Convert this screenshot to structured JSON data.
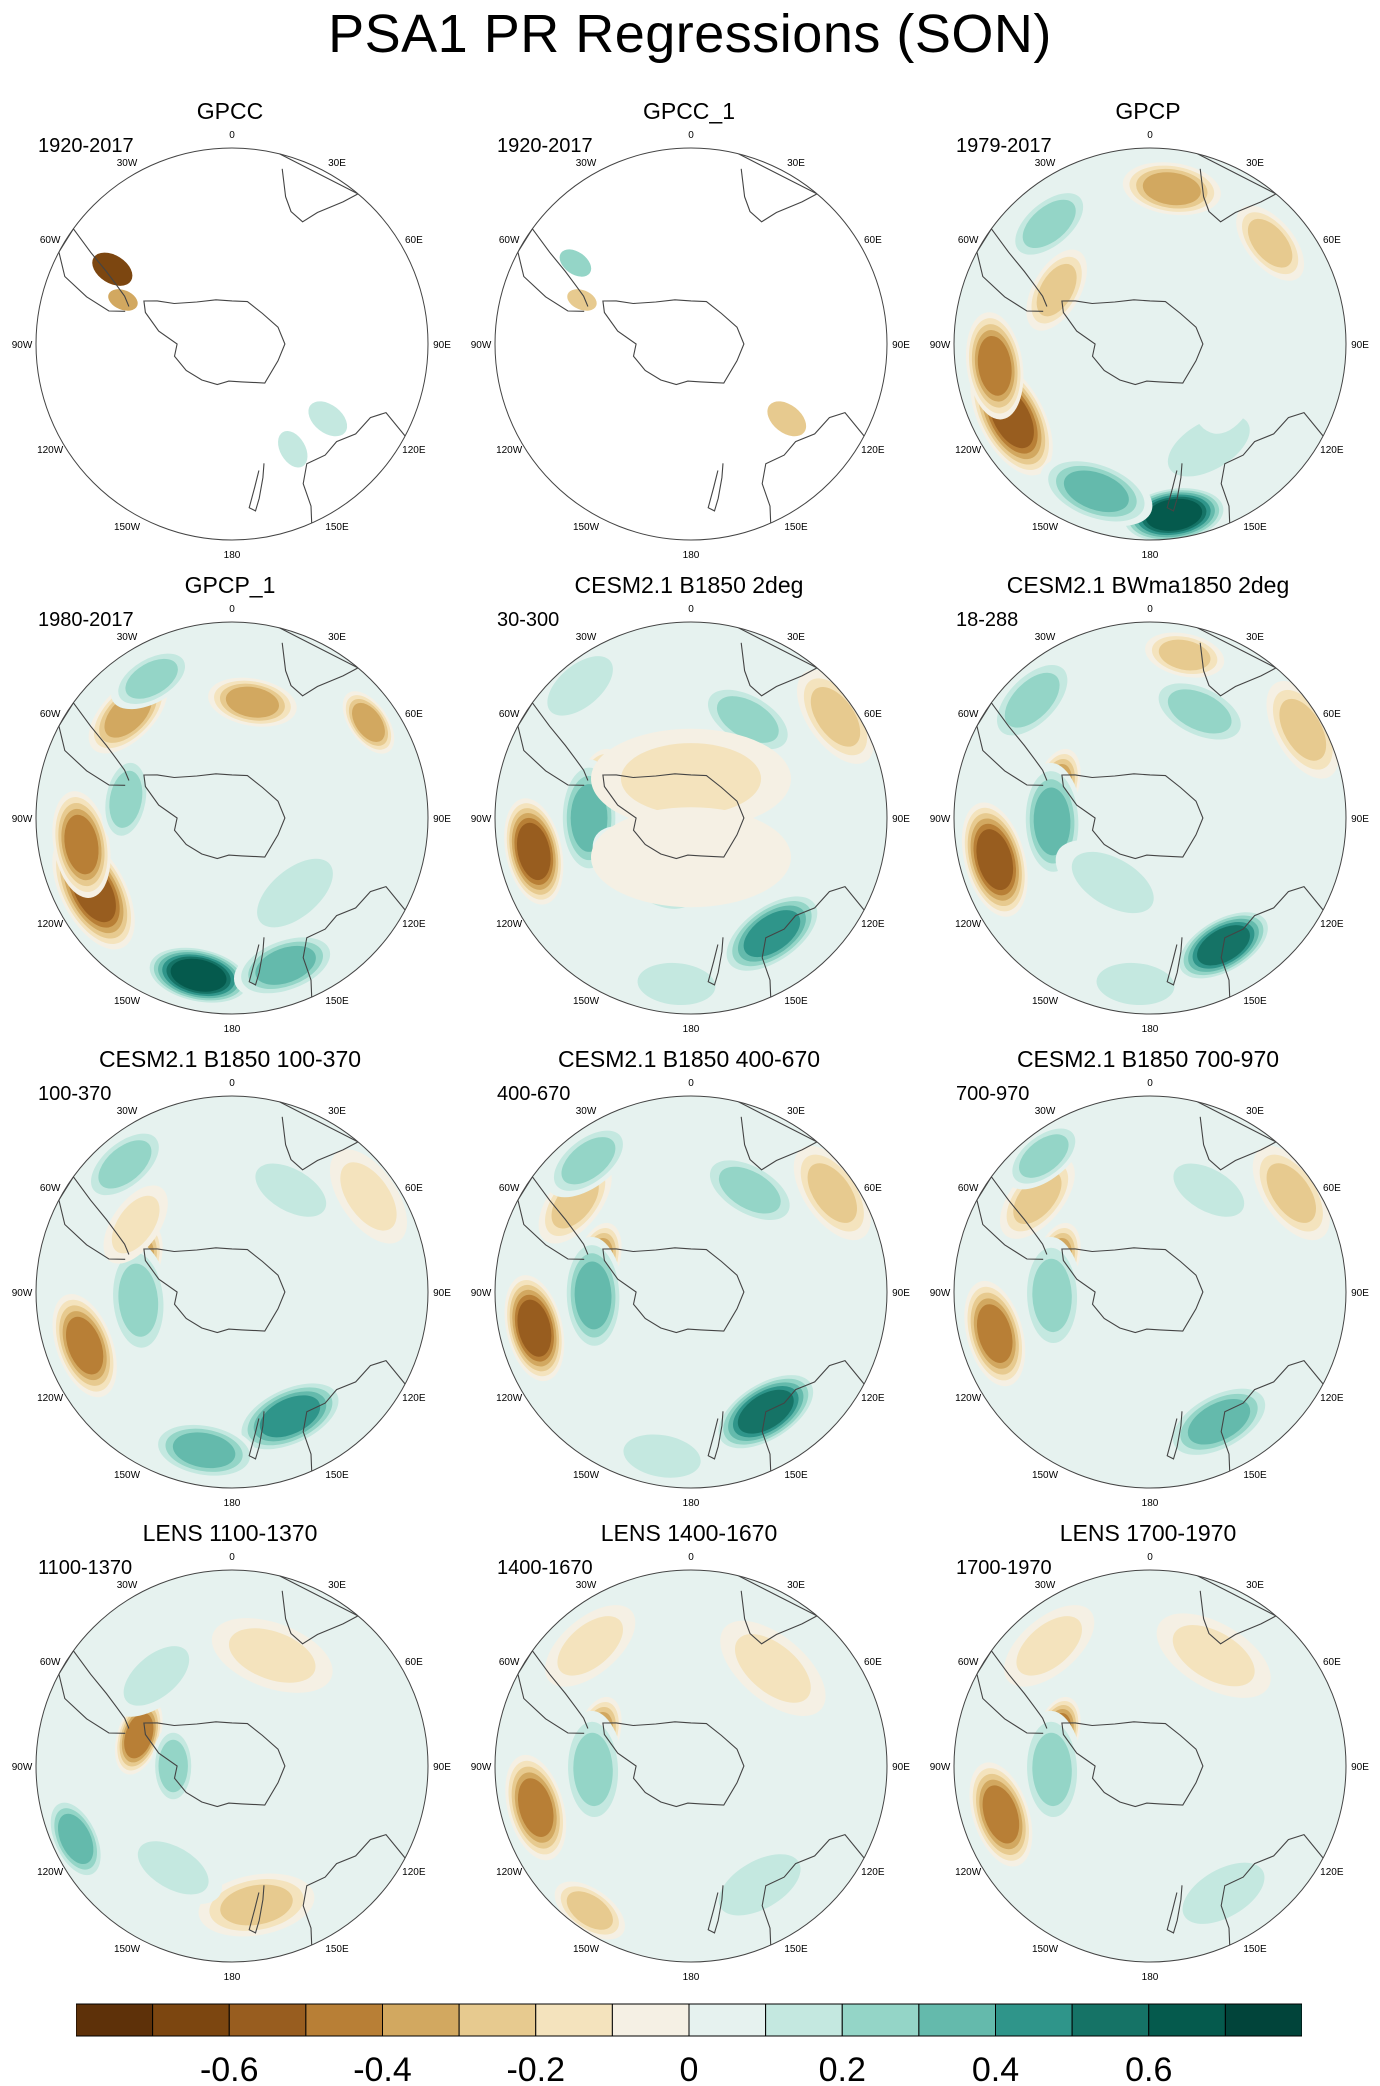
{
  "title": "PSA1 PR Regressions (SON)",
  "lon_labels": [
    "0",
    "30E",
    "60E",
    "90E",
    "120E",
    "150E",
    "180",
    "150W",
    "120W",
    "90W",
    "60W",
    "30W"
  ],
  "panels": [
    {
      "title": "GPCC",
      "period": "1920-2017",
      "fill": "land-only",
      "blobs": [
        {
          "lon": -58,
          "r": 0.72,
          "v": -0.6,
          "w": 1.0
        },
        {
          "lon": -68,
          "r": 0.6,
          "v": -0.3,
          "w": 0.7
        },
        {
          "lon": 150,
          "r": 0.62,
          "v": 0.2,
          "w": 0.9
        },
        {
          "lon": 128,
          "r": 0.62,
          "v": 0.15,
          "w": 1.0
        }
      ]
    },
    {
      "title": "GPCC_1",
      "period": "1920-2017",
      "fill": "land-only",
      "blobs": [
        {
          "lon": -55,
          "r": 0.72,
          "v": 0.3,
          "w": 0.8
        },
        {
          "lon": 128,
          "r": 0.62,
          "v": -0.2,
          "w": 1.0
        },
        {
          "lon": -68,
          "r": 0.6,
          "v": -0.2,
          "w": 0.7
        }
      ]
    },
    {
      "title": "GPCP",
      "period": "1979-2017",
      "fill": "full",
      "blobs": [
        {
          "lon": -118,
          "r": 0.8,
          "v": -0.6,
          "w": 1.2
        },
        {
          "lon": -98,
          "r": 0.8,
          "v": -0.5,
          "w": 1.0
        },
        {
          "lon": 172,
          "r": 0.88,
          "v": 0.7,
          "w": 1.0
        },
        {
          "lon": -160,
          "r": 0.8,
          "v": 0.4,
          "w": 1.1
        },
        {
          "lon": 8,
          "r": 0.8,
          "v": -0.4,
          "w": 0.9
        },
        {
          "lon": -40,
          "r": 0.8,
          "v": 0.3,
          "w": 0.9
        },
        {
          "lon": 50,
          "r": 0.8,
          "v": -0.3,
          "w": 0.8
        },
        {
          "lon": -60,
          "r": 0.55,
          "v": -0.3,
          "w": 0.8
        },
        {
          "lon": 150,
          "r": 0.6,
          "v": 0.2,
          "w": 1.2
        },
        {
          "lon": 100,
          "r": 0.4,
          "v": 0.15,
          "w": 1.5
        }
      ]
    },
    {
      "title": "GPCP_1",
      "period": "1980-2017",
      "fill": "full",
      "blobs": [
        {
          "lon": -118,
          "r": 0.8,
          "v": -0.6,
          "w": 1.2
        },
        {
          "lon": -100,
          "r": 0.78,
          "v": -0.5,
          "w": 1.0
        },
        {
          "lon": -168,
          "r": 0.82,
          "v": 0.7,
          "w": 1.0
        },
        {
          "lon": 160,
          "r": 0.8,
          "v": 0.4,
          "w": 1.0
        },
        {
          "lon": 10,
          "r": 0.6,
          "v": -0.4,
          "w": 0.8
        },
        {
          "lon": -45,
          "r": 0.75,
          "v": -0.4,
          "w": 0.9
        },
        {
          "lon": -30,
          "r": 0.82,
          "v": 0.3,
          "w": 0.8
        },
        {
          "lon": 55,
          "r": 0.85,
          "v": -0.4,
          "w": 0.6
        },
        {
          "lon": -80,
          "r": 0.55,
          "v": 0.3,
          "w": 0.8
        },
        {
          "lon": 140,
          "r": 0.5,
          "v": 0.2,
          "w": 1.2
        }
      ]
    },
    {
      "title": "CESM2.1 B1850 2deg",
      "period": "30-300",
      "fill": "full",
      "blobs": [
        {
          "lon": -102,
          "r": 0.82,
          "v": -0.6,
          "w": 1.0
        },
        {
          "lon": -72,
          "r": 0.5,
          "v": -0.4,
          "w": 0.7
        },
        {
          "lon": -90,
          "r": 0.52,
          "v": 0.4,
          "w": 1.1
        },
        {
          "lon": 145,
          "r": 0.72,
          "v": 0.5,
          "w": 1.1
        },
        {
          "lon": 30,
          "r": 0.58,
          "v": 0.3,
          "w": 1.0
        },
        {
          "lon": 55,
          "r": 0.9,
          "v": -0.3,
          "w": 1.0
        },
        {
          "lon": -145,
          "r": 0.35,
          "v": 0.2,
          "w": 1.3
        },
        {
          "lon": -40,
          "r": 0.88,
          "v": 0.2,
          "w": 1.0
        },
        {
          "lon": -175,
          "r": 0.85,
          "v": 0.2,
          "w": 1.0
        },
        {
          "lon": 0,
          "r": 0.2,
          "v": -0.2,
          "w": 2.0
        },
        {
          "lon": 180,
          "r": 0.2,
          "v": -0.15,
          "w": 2.0
        }
      ]
    },
    {
      "title": "CESM2.1 BWma1850 2deg",
      "period": "18-288",
      "fill": "full",
      "blobs": [
        {
          "lon": -105,
          "r": 0.82,
          "v": -0.6,
          "w": 1.1
        },
        {
          "lon": -72,
          "r": 0.5,
          "v": -0.4,
          "w": 0.7
        },
        {
          "lon": -92,
          "r": 0.5,
          "v": 0.4,
          "w": 1.1
        },
        {
          "lon": 150,
          "r": 0.75,
          "v": 0.6,
          "w": 1.0
        },
        {
          "lon": 25,
          "r": 0.6,
          "v": 0.3,
          "w": 1.0
        },
        {
          "lon": 60,
          "r": 0.9,
          "v": -0.3,
          "w": 1.0
        },
        {
          "lon": 12,
          "r": 0.85,
          "v": -0.3,
          "w": 0.7
        },
        {
          "lon": -45,
          "r": 0.85,
          "v": 0.3,
          "w": 1.0
        },
        {
          "lon": -150,
          "r": 0.38,
          "v": 0.2,
          "w": 1.2
        },
        {
          "lon": -175,
          "r": 0.85,
          "v": 0.2,
          "w": 1.0
        }
      ]
    },
    {
      "title": "CESM2.1 B1850 100-370",
      "period": "100-370",
      "fill": "full",
      "blobs": [
        {
          "lon": -110,
          "r": 0.8,
          "v": -0.5,
          "w": 1.0
        },
        {
          "lon": -72,
          "r": 0.5,
          "v": -0.4,
          "w": 0.7
        },
        {
          "lon": -95,
          "r": 0.48,
          "v": 0.3,
          "w": 1.1
        },
        {
          "lon": 155,
          "r": 0.7,
          "v": 0.5,
          "w": 1.1
        },
        {
          "lon": -170,
          "r": 0.82,
          "v": 0.4,
          "w": 1.0
        },
        {
          "lon": 30,
          "r": 0.6,
          "v": 0.2,
          "w": 1.0
        },
        {
          "lon": 55,
          "r": 0.85,
          "v": -0.2,
          "w": 1.0
        },
        {
          "lon": -40,
          "r": 0.85,
          "v": 0.3,
          "w": 0.9
        },
        {
          "lon": -55,
          "r": 0.6,
          "v": -0.2,
          "w": 0.8
        }
      ]
    },
    {
      "title": "CESM2.1 B1850 400-670",
      "period": "400-670",
      "fill": "full",
      "blobs": [
        {
          "lon": -103,
          "r": 0.82,
          "v": -0.6,
          "w": 1.0
        },
        {
          "lon": -72,
          "r": 0.5,
          "v": -0.4,
          "w": 0.7
        },
        {
          "lon": -92,
          "r": 0.5,
          "v": 0.4,
          "w": 1.1
        },
        {
          "lon": 148,
          "r": 0.72,
          "v": 0.6,
          "w": 1.1
        },
        {
          "lon": 30,
          "r": 0.6,
          "v": 0.3,
          "w": 1.0
        },
        {
          "lon": 55,
          "r": 0.88,
          "v": -0.3,
          "w": 1.0
        },
        {
          "lon": -52,
          "r": 0.75,
          "v": -0.3,
          "w": 0.9
        },
        {
          "lon": -38,
          "r": 0.85,
          "v": 0.3,
          "w": 0.9
        },
        {
          "lon": -170,
          "r": 0.85,
          "v": 0.2,
          "w": 1.0
        }
      ]
    },
    {
      "title": "CESM2.1 B1850 700-970",
      "period": "700-970",
      "fill": "full",
      "blobs": [
        {
          "lon": -105,
          "r": 0.82,
          "v": -0.5,
          "w": 1.0
        },
        {
          "lon": -72,
          "r": 0.5,
          "v": -0.4,
          "w": 0.7
        },
        {
          "lon": -92,
          "r": 0.5,
          "v": 0.3,
          "w": 1.1
        },
        {
          "lon": 152,
          "r": 0.75,
          "v": 0.4,
          "w": 1.1
        },
        {
          "lon": 30,
          "r": 0.6,
          "v": 0.2,
          "w": 1.0
        },
        {
          "lon": 55,
          "r": 0.88,
          "v": -0.3,
          "w": 1.0
        },
        {
          "lon": -50,
          "r": 0.75,
          "v": -0.3,
          "w": 0.9
        },
        {
          "lon": -38,
          "r": 0.88,
          "v": 0.3,
          "w": 0.8
        }
      ]
    },
    {
      "title": "LENS 1100-1370",
      "period": "1100-1370",
      "fill": "full",
      "blobs": [
        {
          "lon": -115,
          "r": 0.88,
          "v": 0.4,
          "w": 0.8
        },
        {
          "lon": -72,
          "r": 0.5,
          "v": -0.5,
          "w": 0.7
        },
        {
          "lon": -90,
          "r": 0.3,
          "v": 0.3,
          "w": 0.7
        },
        {
          "lon": 170,
          "r": 0.72,
          "v": -0.3,
          "w": 1.1
        },
        {
          "lon": -150,
          "r": 0.6,
          "v": 0.2,
          "w": 1.0
        },
        {
          "lon": 20,
          "r": 0.6,
          "v": -0.2,
          "w": 1.2
        },
        {
          "lon": -40,
          "r": 0.6,
          "v": 0.2,
          "w": 1.0
        }
      ]
    },
    {
      "title": "LENS 1400-1670",
      "period": "1400-1670",
      "fill": "full",
      "blobs": [
        {
          "lon": -105,
          "r": 0.82,
          "v": -0.5,
          "w": 1.0
        },
        {
          "lon": -72,
          "r": 0.5,
          "v": -0.4,
          "w": 0.7
        },
        {
          "lon": -92,
          "r": 0.5,
          "v": 0.3,
          "w": 1.1
        },
        {
          "lon": -145,
          "r": 0.9,
          "v": -0.3,
          "w": 0.7
        },
        {
          "lon": 150,
          "r": 0.7,
          "v": 0.2,
          "w": 1.2
        },
        {
          "lon": -40,
          "r": 0.8,
          "v": -0.2,
          "w": 1.0
        },
        {
          "lon": 40,
          "r": 0.65,
          "v": -0.2,
          "w": 1.2
        }
      ]
    },
    {
      "title": "LENS 1700-1970",
      "period": "1700-1970",
      "fill": "full",
      "blobs": [
        {
          "lon": -108,
          "r": 0.8,
          "v": -0.5,
          "w": 1.0
        },
        {
          "lon": -72,
          "r": 0.5,
          "v": -0.5,
          "w": 0.7
        },
        {
          "lon": -92,
          "r": 0.5,
          "v": 0.3,
          "w": 1.1
        },
        {
          "lon": 150,
          "r": 0.75,
          "v": 0.2,
          "w": 1.2
        },
        {
          "lon": -40,
          "r": 0.8,
          "v": -0.2,
          "w": 1.0
        },
        {
          "lon": 30,
          "r": 0.65,
          "v": -0.2,
          "w": 1.2
        }
      ]
    }
  ],
  "colorbar": {
    "colors": [
      "#5e3109",
      "#7c4610",
      "#985d1f",
      "#b87f36",
      "#d2a860",
      "#e7ca8f",
      "#f4e3bd",
      "#f5f0e4",
      "#e6f2ef",
      "#c4e8e0",
      "#94d5c7",
      "#64baac",
      "#2f958a",
      "#157366",
      "#055a4d",
      "#01443a"
    ],
    "bounds": [
      -0.7,
      -0.6,
      -0.5,
      -0.4,
      -0.3,
      -0.2,
      -0.1,
      0,
      0.1,
      0.2,
      0.3,
      0.4,
      0.5,
      0.6,
      0.7
    ],
    "labels": [
      "-0.6",
      "-0.4",
      "-0.2",
      "0",
      "0.2",
      "0.4",
      "0.6"
    ]
  }
}
